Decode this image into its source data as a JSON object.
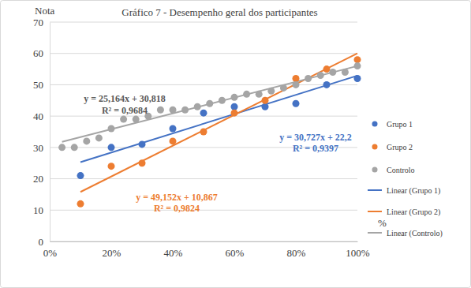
{
  "chart_data": {
    "type": "scatter",
    "title": "Gráfico 7 - Desempenho geral dos participantes",
    "xlabel": "%",
    "ylabel": "Nota",
    "xlim": [
      0,
      100
    ],
    "xticks": [
      {
        "value": 0,
        "label": "0%"
      },
      {
        "value": 20,
        "label": "20%"
      },
      {
        "value": 40,
        "label": "40%"
      },
      {
        "value": 60,
        "label": "60%"
      },
      {
        "value": 80,
        "label": "80%"
      },
      {
        "value": 100,
        "label": "100%"
      }
    ],
    "ylim": [
      0,
      70
    ],
    "yticks": [
      0,
      10,
      20,
      30,
      40,
      50,
      60,
      70
    ],
    "grid": true,
    "legend": "right",
    "series": [
      {
        "name": "Grupo 1",
        "type": "scatter",
        "marker": "circle",
        "color": "#4472c4",
        "x": [
          10,
          20,
          30,
          40,
          50,
          60,
          70,
          80,
          90,
          100
        ],
        "values": [
          21,
          30,
          31,
          36,
          41,
          43,
          43,
          44,
          50,
          52
        ]
      },
      {
        "name": "Grupo 2",
        "type": "scatter",
        "marker": "circle",
        "color": "#ed7d31",
        "x": [
          10,
          20,
          30,
          40,
          50,
          60,
          70,
          80,
          90,
          100
        ],
        "values": [
          12,
          24,
          25,
          32,
          35,
          41,
          45,
          52,
          55,
          58
        ]
      },
      {
        "name": "Controlo",
        "type": "scatter",
        "marker": "circle",
        "color": "#a5a5a5",
        "x": [
          4,
          8,
          12,
          16,
          20,
          24,
          28,
          32,
          36,
          40,
          44,
          48,
          52,
          56,
          60,
          64,
          68,
          72,
          76,
          80,
          84,
          88,
          92,
          96,
          100
        ],
        "values": [
          30,
          30,
          32,
          33,
          36,
          39,
          39,
          40,
          42,
          42,
          42,
          43,
          44,
          45,
          46,
          47,
          47,
          48,
          49,
          50,
          52,
          53,
          54,
          54,
          56
        ]
      },
      {
        "name": "Linear (Grupo 1)",
        "type": "line",
        "line_style": "solid",
        "color": "#4472c4",
        "x": [
          10,
          100
        ],
        "values": [
          25.3,
          52.9
        ]
      },
      {
        "name": "Linear (Grupo 2)",
        "type": "line",
        "line_style": "solid",
        "color": "#ed7d31",
        "x": [
          10,
          100
        ],
        "values": [
          15.8,
          60.0
        ]
      },
      {
        "name": "Linear (Controlo)",
        "type": "line",
        "line_style": "solid",
        "color": "#a5a5a5",
        "x": [
          4,
          100
        ],
        "values": [
          31.8,
          56.0
        ]
      }
    ],
    "annotations": [
      {
        "text": "y = 25,164x + 30,818",
        "color": "#595959"
      },
      {
        "text": "R² = 0,9684",
        "color": "#595959"
      },
      {
        "text": "y = 30,727x + 22,2",
        "color": "#4472c4"
      },
      {
        "text": "R² = 0,9397",
        "color": "#4472c4"
      },
      {
        "text": "y = 49,152x + 10,867",
        "color": "#ed7d31"
      },
      {
        "text": "R² = 0,9824",
        "color": "#ed7d31"
      }
    ]
  }
}
